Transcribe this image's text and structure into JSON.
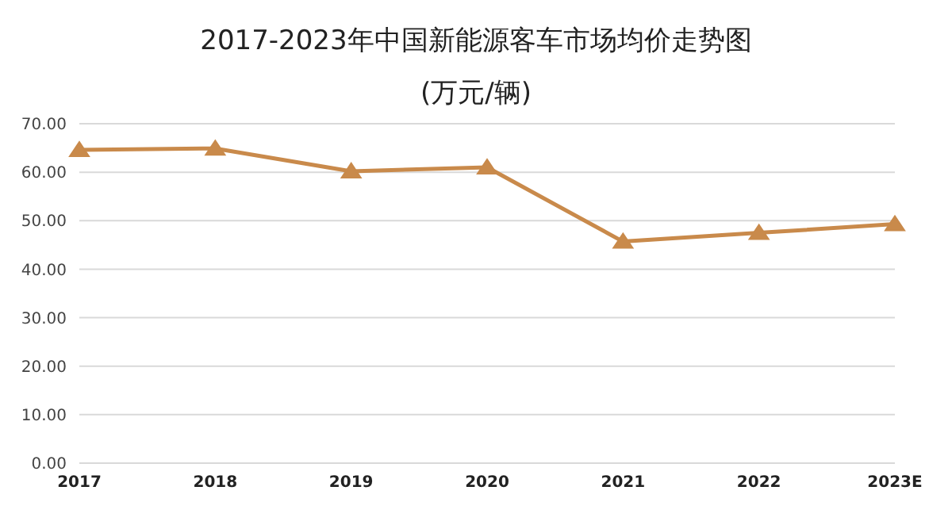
{
  "chart_data": {
    "type": "line",
    "title": "2017-2023年中国新能源客车市场均价走势图",
    "subtitle": "(万元/辆)",
    "categories": [
      "2017",
      "2018",
      "2019",
      "2020",
      "2021",
      "2022",
      "2023E"
    ],
    "series": [
      {
        "color": "#c98a4b",
        "values": [
          64.6,
          64.9,
          60.2,
          61.0,
          45.7,
          47.5,
          49.3
        ]
      }
    ],
    "ylim": [
      0,
      70
    ],
    "yticks": [
      {
        "value": 0,
        "label": "0.00"
      },
      {
        "value": 10,
        "label": "10.00"
      },
      {
        "value": 20,
        "label": "20.00"
      },
      {
        "value": 30,
        "label": "30.00"
      },
      {
        "value": 40,
        "label": "40.00"
      },
      {
        "value": 50,
        "label": "50.00"
      },
      {
        "value": 60,
        "label": "60.00"
      },
      {
        "value": 70,
        "label": "70.00"
      }
    ],
    "grid": "y",
    "marker": "triangle",
    "legend": false
  }
}
